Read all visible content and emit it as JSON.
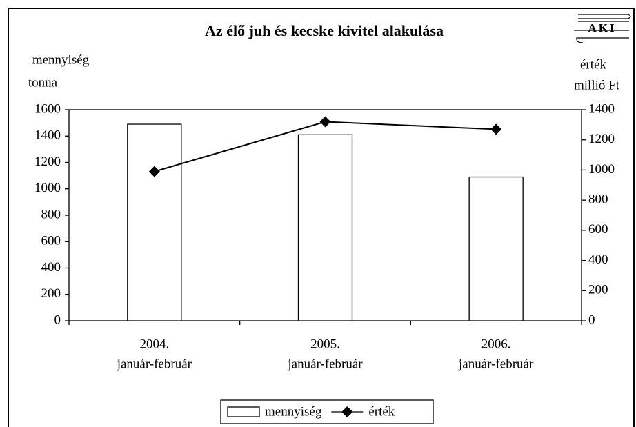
{
  "chart_data": {
    "type": "bar_line",
    "title": "Az élő juh és kecske kivitel alakulása",
    "logo": "AKI",
    "y_label": [
      "mennyiség",
      "tonna"
    ],
    "y2_label": [
      "érték",
      "millió Ft"
    ],
    "categories": [
      [
        "2004.",
        "január-február"
      ],
      [
        "2005.",
        "január-február"
      ],
      [
        "2006.",
        "január-február"
      ]
    ],
    "series": [
      {
        "name": "mennyiség",
        "type": "bar",
        "color": "#ffffff",
        "values": [
          1490,
          1410,
          1090
        ]
      },
      {
        "name": "érték",
        "type": "line",
        "axis": "y2",
        "color": "#000000",
        "values": [
          990,
          1320,
          1270
        ]
      }
    ],
    "ylim": [
      0,
      1600
    ],
    "yticks": [
      0,
      200,
      400,
      600,
      800,
      1000,
      1200,
      1400,
      1600
    ],
    "y2lim": [
      0,
      1400
    ],
    "y2ticks": [
      0,
      200,
      400,
      600,
      800,
      1000,
      1200,
      1400
    ],
    "legend": "bottom"
  }
}
